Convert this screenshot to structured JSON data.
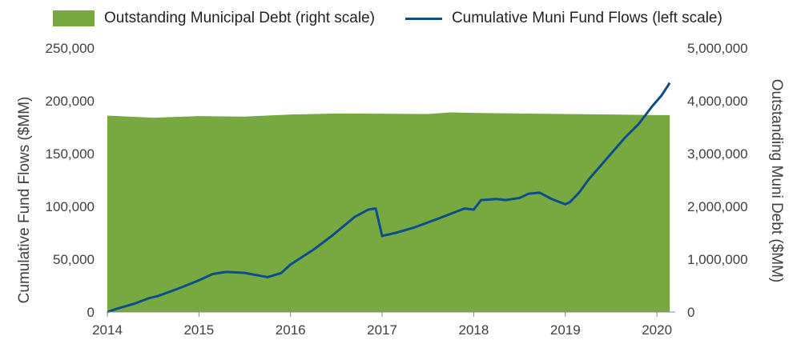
{
  "colors": {
    "area": "#78A941",
    "line": "#0F4C8A",
    "axis": "#888888"
  },
  "chart_data": {
    "type": "area",
    "legend_placement": "top",
    "grid": false,
    "series": [
      {
        "name": "Outstanding Municipal Debt (right scale)",
        "axis": "right",
        "type": "area",
        "x": [
          2014.0,
          2014.5,
          2015.0,
          2015.5,
          2016.0,
          2016.5,
          2017.0,
          2017.5,
          2017.75,
          2018.0,
          2018.5,
          2019.0,
          2019.5,
          2020.0,
          2020.14
        ],
        "values": [
          3720000,
          3680000,
          3710000,
          3700000,
          3740000,
          3760000,
          3755000,
          3750000,
          3780000,
          3770000,
          3760000,
          3750000,
          3740000,
          3730000,
          3730000
        ]
      },
      {
        "name": "Cumulative Muni Fund Flows (left scale)",
        "axis": "left",
        "type": "line",
        "x": [
          2014.0,
          2014.1,
          2014.3,
          2014.45,
          2014.55,
          2014.8,
          2015.0,
          2015.15,
          2015.3,
          2015.5,
          2015.75,
          2015.9,
          2016.0,
          2016.25,
          2016.45,
          2016.7,
          2016.85,
          2016.93,
          2017.0,
          2017.15,
          2017.35,
          2017.6,
          2017.9,
          2018.0,
          2018.08,
          2018.25,
          2018.35,
          2018.5,
          2018.6,
          2018.72,
          2018.85,
          2019.0,
          2019.05,
          2019.15,
          2019.25,
          2019.45,
          2019.65,
          2019.8,
          2019.95,
          2020.05,
          2020.14
        ],
        "values": [
          0,
          3000,
          8000,
          13000,
          15000,
          23000,
          30000,
          36000,
          38000,
          37000,
          33000,
          37000,
          45000,
          59000,
          72000,
          90000,
          97000,
          98000,
          72000,
          75000,
          80000,
          88000,
          98000,
          97000,
          106000,
          107000,
          106000,
          108000,
          112000,
          113000,
          107000,
          102000,
          104000,
          113000,
          125000,
          145000,
          165000,
          178000,
          195000,
          205000,
          217000
        ]
      }
    ],
    "left_axis": {
      "title": "Cumulative Fund Flows  ($MM)",
      "min": 0,
      "max": 250000,
      "ticks": [
        "0",
        "50,000",
        "100,000",
        "150,000",
        "200,000",
        "250,000"
      ]
    },
    "right_axis": {
      "title": "Outstanding Muni Debt ($MM)",
      "min": 0,
      "max": 5000000,
      "ticks": [
        "0",
        "1,000,000",
        "2,000,000",
        "3,000,000",
        "4,000,000",
        "5,000,000"
      ]
    },
    "x_axis": {
      "min": 2014,
      "max": 2020.2,
      "ticks": [
        "2014",
        "2015",
        "2016",
        "2017",
        "2018",
        "2019",
        "2020"
      ]
    }
  }
}
